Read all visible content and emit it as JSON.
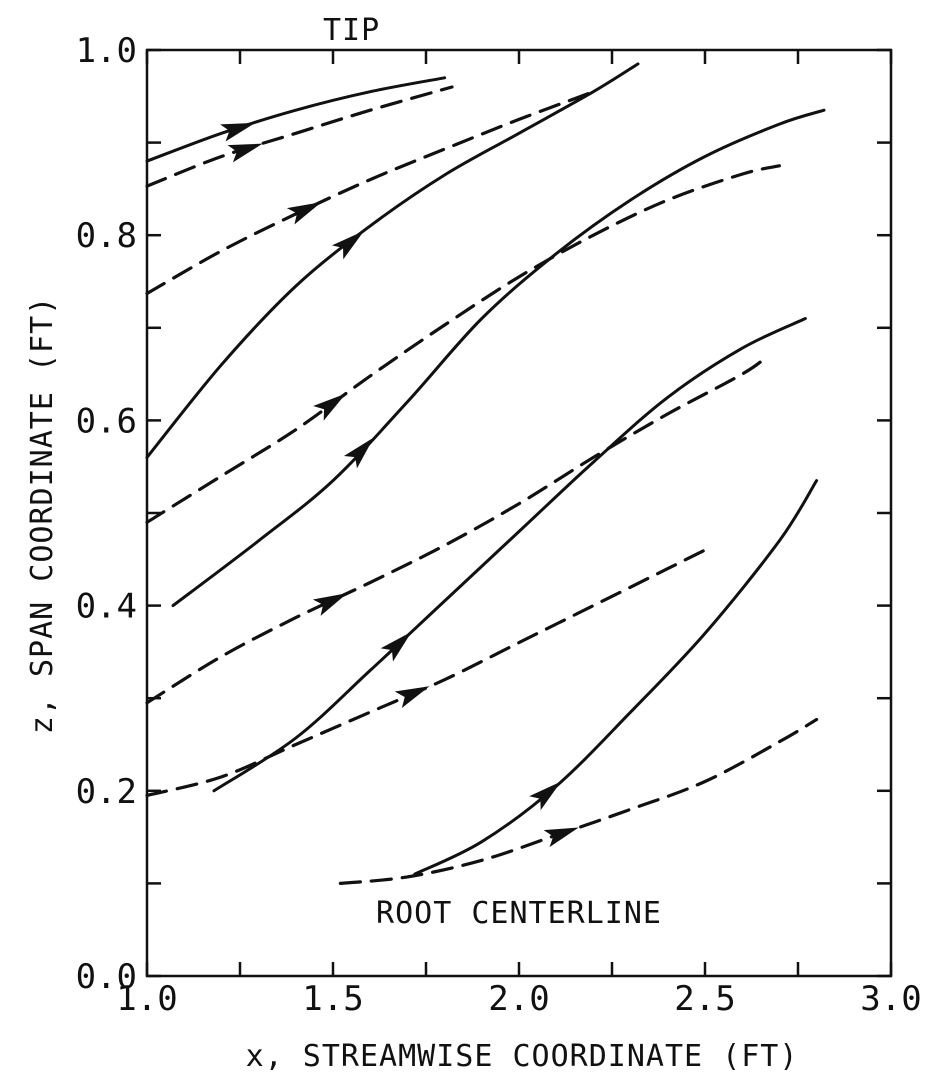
{
  "chart_data": {
    "type": "line",
    "xlabel": "x, STREAMWISE COORDINATE (FT)",
    "ylabel": "z, SPAN COORDINATE (FT)",
    "xlim": [
      1.0,
      3.0
    ],
    "ylim": [
      0.0,
      1.0
    ],
    "x_ticks": [
      1.0,
      1.5,
      2.0,
      2.5,
      3.0
    ],
    "x_tick_labels": [
      "1.0",
      "1.5",
      "2.0",
      "2.5",
      "3.0"
    ],
    "y_ticks": [
      0.0,
      0.2,
      0.4,
      0.6,
      0.8,
      1.0
    ],
    "y_tick_labels": [
      "0.0",
      "0.2",
      "0.4",
      "0.6",
      "0.8",
      "1.0"
    ],
    "annotations": [
      {
        "text": "TIP",
        "x": 1.55,
        "y": 1.0
      },
      {
        "text": "ROOT CENTERLINE",
        "x": 2.0,
        "y": 0.07
      }
    ],
    "series": [
      {
        "style": "solid",
        "arrow_at": 1.25,
        "x": [
          1.0,
          1.2,
          1.4,
          1.6,
          1.8
        ],
        "y": [
          0.88,
          0.91,
          0.935,
          0.955,
          0.97
        ]
      },
      {
        "style": "dashed",
        "arrow_at": 1.27,
        "x": [
          1.0,
          1.2,
          1.4,
          1.6,
          1.82
        ],
        "y": [
          0.853,
          0.885,
          0.91,
          0.935,
          0.96
        ]
      },
      {
        "style": "dashed",
        "arrow_at": 1.43,
        "x": [
          1.0,
          1.2,
          1.4,
          1.6,
          1.8,
          2.0,
          2.2
        ],
        "y": [
          0.737,
          0.783,
          0.823,
          0.86,
          0.893,
          0.925,
          0.955
        ]
      },
      {
        "style": "solid",
        "arrow_at": 1.55,
        "x": [
          1.0,
          1.2,
          1.4,
          1.6,
          1.8,
          2.0,
          2.2,
          2.32
        ],
        "y": [
          0.56,
          0.66,
          0.745,
          0.81,
          0.865,
          0.91,
          0.955,
          0.985
        ]
      },
      {
        "style": "solid",
        "arrow_at": 1.58,
        "x": [
          1.07,
          1.3,
          1.5,
          1.7,
          1.9,
          2.1,
          2.3,
          2.5,
          2.7,
          2.82
        ],
        "y": [
          0.4,
          0.47,
          0.535,
          0.62,
          0.71,
          0.78,
          0.838,
          0.885,
          0.92,
          0.935
        ]
      },
      {
        "style": "dashed",
        "arrow_at": 1.5,
        "x": [
          1.0,
          1.2,
          1.4,
          1.6,
          1.8,
          2.0,
          2.2,
          2.4,
          2.6,
          2.7
        ],
        "y": [
          0.49,
          0.54,
          0.59,
          0.648,
          0.703,
          0.755,
          0.8,
          0.838,
          0.866,
          0.875
        ]
      },
      {
        "style": "dashed",
        "arrow_at": 1.5,
        "x": [
          1.0,
          1.2,
          1.4,
          1.6,
          1.8,
          2.0,
          2.2,
          2.4,
          2.6,
          2.67
        ],
        "y": [
          0.295,
          0.345,
          0.387,
          0.425,
          0.465,
          0.51,
          0.56,
          0.607,
          0.65,
          0.67
        ]
      },
      {
        "style": "solid",
        "arrow_at": 1.68,
        "x": [
          1.18,
          1.4,
          1.6,
          1.8,
          2.0,
          2.2,
          2.4,
          2.6,
          2.77
        ],
        "y": [
          0.2,
          0.257,
          0.33,
          0.405,
          0.48,
          0.555,
          0.625,
          0.678,
          0.71
        ]
      },
      {
        "style": "dashed",
        "arrow_at": 1.72,
        "x": [
          1.0,
          1.2,
          1.4,
          1.6,
          1.8,
          2.0,
          2.2,
          2.4,
          2.5
        ],
        "y": [
          0.195,
          0.215,
          0.25,
          0.285,
          0.32,
          0.36,
          0.4,
          0.44,
          0.46
        ]
      },
      {
        "style": "solid",
        "arrow_at": 2.08,
        "x": [
          1.72,
          1.9,
          2.1,
          2.3,
          2.5,
          2.7,
          2.8
        ],
        "y": [
          0.11,
          0.145,
          0.205,
          0.285,
          0.37,
          0.47,
          0.535
        ]
      },
      {
        "style": "dashed",
        "arrow_at": 2.12,
        "x": [
          1.52,
          1.7,
          1.9,
          2.1,
          2.3,
          2.5,
          2.7,
          2.8
        ],
        "y": [
          0.1,
          0.107,
          0.125,
          0.152,
          0.18,
          0.21,
          0.253,
          0.277
        ]
      }
    ]
  }
}
